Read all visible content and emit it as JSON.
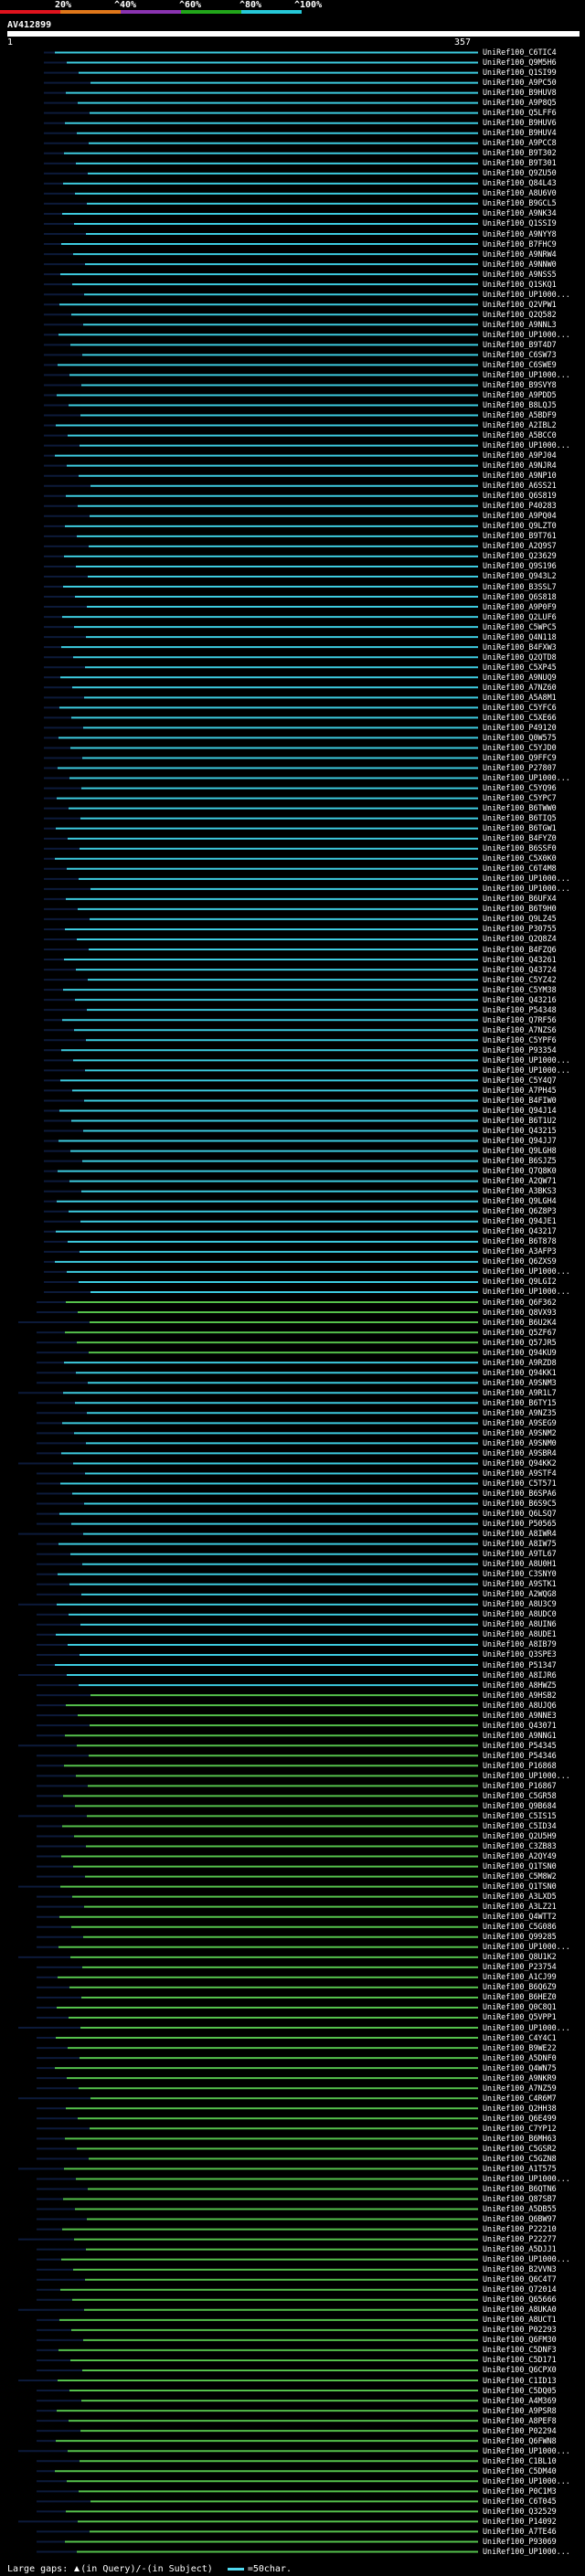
{
  "scale": {
    "labels": [
      "20%",
      "^40%",
      "^60%",
      "^80%",
      "^100%"
    ],
    "colors": [
      "#e0131d",
      "#e0771a",
      "#8a33b0",
      "#22a61a",
      "#26c8d8"
    ]
  },
  "query": {
    "name": "AV412899",
    "start": "1",
    "end": "357"
  },
  "colors": {
    "cyan": "#3dcbe0",
    "green": "#55c14c",
    "dark": "#0c1a3a"
  },
  "hits": [
    "UniRef100_C6TIC4",
    "UniRef100_Q9M5H6",
    "UniRef100_Q1SI99",
    "UniRef100_A9PC50",
    "UniRef100_B9HUV8",
    "UniRef100_A9P8Q5",
    "UniRef100_Q5LFF6",
    "UniRef100_B9HUV6",
    "UniRef100_B9HUV4",
    "UniRef100_A9PCC8",
    "UniRef100_B9T302",
    "UniRef100_B9T301",
    "UniRef100_Q9ZU50",
    "UniRef100_Q84L43",
    "UniRef100_A8U6V0",
    "UniRef100_B9GCL5",
    "UniRef100_A9NK34",
    "UniRef100_Q1SSI9",
    "UniRef100_A9NYY8",
    "UniRef100_B7FHC9",
    "UniRef100_A9NRW4",
    "UniRef100_A9NNW0",
    "UniRef100_A9NSS5",
    "UniRef100_Q1SKQ1",
    "UniRef100_UP1000...",
    "UniRef100_Q2VPW1",
    "UniRef100_Q2Q582",
    "UniRef100_A9NNL3",
    "UniRef100_UP1000...",
    "UniRef100_B9T4D7",
    "UniRef100_C6SW73",
    "UniRef100_C6SWE9",
    "UniRef100_UP1000...",
    "UniRef100_B9SVY8",
    "UniRef100_A9PDD5",
    "UniRef100_B8LQJ5",
    "UniRef100_A5BDF9",
    "UniRef100_A2IBL2",
    "UniRef100_A5BCC0",
    "UniRef100_UP1000...",
    "UniRef100_A9PJ04",
    "UniRef100_A9NJR4",
    "UniRef100_A9NP10",
    "UniRef100_A6SS21",
    "UniRef100_Q6S819",
    "UniRef100_P40283",
    "UniRef100_A9PQ04",
    "UniRef100_Q9LZT0",
    "UniRef100_B9T761",
    "UniRef100_A2Q9S7",
    "UniRef100_Q23629",
    "UniRef100_Q9S196",
    "UniRef100_Q943L2",
    "UniRef100_B3SSL7",
    "UniRef100_Q6S818",
    "UniRef100_A9P0F9",
    "UniRef100_Q2LUF6",
    "UniRef100_C5WPC5",
    "UniRef100_Q4N118",
    "UniRef100_B4FXW3",
    "UniRef100_Q2QTD8",
    "UniRef100_C5XP45",
    "UniRef100_A9NUQ9",
    "UniRef100_A7NZ60",
    "UniRef100_A5A8M1",
    "UniRef100_C5YFC6",
    "UniRef100_C5XE66",
    "UniRef100_P49120",
    "UniRef100_Q0W575",
    "UniRef100_C5YJD0",
    "UniRef100_Q9FFC9",
    "UniRef100_P27807",
    "UniRef100_UP1000...",
    "UniRef100_C5YQ96",
    "UniRef100_C5YPC7",
    "UniRef100_B6TWW0",
    "UniRef100_B6TIQ5",
    "UniRef100_B6TGW1",
    "UniRef100_B4FYZ0",
    "UniRef100_B6SSF0",
    "UniRef100_C5X0K0",
    "UniRef100_C6T4M8",
    "UniRef100_UP1000...",
    "UniRef100_UP1000...",
    "UniRef100_B6UFX4",
    "UniRef100_B6T9H0",
    "UniRef100_Q9LZ45",
    "UniRef100_P30755",
    "UniRef100_Q2Q8Z4",
    "UniRef100_B4FZQ6",
    "UniRef100_Q43261",
    "UniRef100_Q43724",
    "UniRef100_C5YZ42",
    "UniRef100_C5YM38",
    "UniRef100_Q43216",
    "UniRef100_P54348",
    "UniRef100_Q7RF56",
    "UniRef100_A7NZS6",
    "UniRef100_C5YPF6",
    "UniRef100_P93354",
    "UniRef100_UP1000...",
    "UniRef100_UP1000...",
    "UniRef100_C5Y4Q7",
    "UniRef100_A7PH45",
    "UniRef100_B4FIW0",
    "UniRef100_Q94J14",
    "UniRef100_B6T1U2",
    "UniRef100_Q43215",
    "UniRef100_Q94JJ7",
    "UniRef100_Q9LGH8",
    "UniRef100_B6SJZ5",
    "UniRef100_Q7Q8K0",
    "UniRef100_A2QW71",
    "UniRef100_A3BKS3",
    "UniRef100_Q9LGH4",
    "UniRef100_Q6Z8P3",
    "UniRef100_Q94JE1",
    "UniRef100_Q43217",
    "UniRef100_B6T878",
    "UniRef100_A3AFP3",
    "UniRef100_Q6ZXS9",
    "UniRef100_UP1000...",
    "UniRef100_Q9LGI2",
    "UniRef100_UP1000...",
    "UniRef100_Q6F362",
    "UniRef100_Q8VX93",
    "UniRef100_B6U2K4",
    "UniRef100_Q5ZF67",
    "UniRef100_Q57JR5",
    "UniRef100_Q94KU9",
    "UniRef100_A9RZD8",
    "UniRef100_Q94KK1",
    "UniRef100_A9SNM3",
    "UniRef100_A9R1L7",
    "UniRef100_B6TY15",
    "UniRef100_A9NZ35",
    "UniRef100_A9SEG9",
    "UniRef100_A9SNM2",
    "UniRef100_A9SNM0",
    "UniRef100_A9SBR4",
    "UniRef100_Q94KK2",
    "UniRef100_A9STF4",
    "UniRef100_C5T571",
    "UniRef100_B6SPA6",
    "UniRef100_B6S9C5",
    "UniRef100_Q6LSQ7",
    "UniRef100_P50565",
    "UniRef100_A8IWR4",
    "UniRef100_A8IW75",
    "UniRef100_A9TL67",
    "UniRef100_A8U0H1",
    "UniRef100_C3SNY0",
    "UniRef100_A9STK1",
    "UniRef100_A2WQG8",
    "UniRef100_A8U3C9",
    "UniRef100_A8UDC0",
    "UniRef100_A8UIN6",
    "UniRef100_A8UDE1",
    "UniRef100_A8IB79",
    "UniRef100_Q3SPE3",
    "UniRef100_P51347",
    "UniRef100_A8IJR6",
    "UniRef100_A8HWZ5",
    "UniRef100_A9HSB2",
    "UniRef100_A8UJQ6",
    "UniRef100_A9NNE3",
    "UniRef100_Q43071",
    "UniRef100_A9NNG1",
    "UniRef100_P54345",
    "UniRef100_P54346",
    "UniRef100_P16868",
    "UniRef100_UP1000...",
    "UniRef100_P16867",
    "UniRef100_C5GR58",
    "UniRef100_Q9B684",
    "UniRef100_C5IS15",
    "UniRef100_C5ID34",
    "UniRef100_Q2U5H9",
    "UniRef100_C3ZB83",
    "UniRef100_A2QY49",
    "UniRef100_Q1TSN0",
    "UniRef100_C5M8W2",
    "UniRef100_Q1TSN0",
    "UniRef100_A3LXD5",
    "UniRef100_A3LZ21",
    "UniRef100_Q4WTT2",
    "UniRef100_C5G086",
    "UniRef100_Q99285",
    "UniRef100_UP1000...",
    "UniRef100_Q8U1K2",
    "UniRef100_P23754",
    "UniRef100_A1CJ99",
    "UniRef100_B6Q6Z9",
    "UniRef100_B6HEZ0",
    "UniRef100_Q0C8Q1",
    "UniRef100_Q5VPP1",
    "UniRef100_UP1000...",
    "UniRef100_C4Y4C1",
    "UniRef100_B9WE22",
    "UniRef100_A5DNF0",
    "UniRef100_Q4WN75",
    "UniRef100_A9NKR9",
    "UniRef100_A7NZ59",
    "UniRef100_C4R6M7",
    "UniRef100_Q2HH38",
    "UniRef100_Q6E499",
    "UniRef100_C7YP12",
    "UniRef100_B6MH63",
    "UniRef100_C5GSR2",
    "UniRef100_C5GZN8",
    "UniRef100_A1T575",
    "UniRef100_UP1000...",
    "UniRef100_B6QTN6",
    "UniRef100_Q87SB7",
    "UniRef100_A5DB55",
    "UniRef100_Q6BW97",
    "UniRef100_P22210",
    "UniRef100_P22277",
    "UniRef100_A5DJJ1",
    "UniRef100_UP1000...",
    "UniRef100_B2VVN3",
    "UniRef100_Q6C4T7",
    "UniRef100_Q72014",
    "UniRef100_Q65666",
    "UniRef100_A8UKA0",
    "UniRef100_A8UCT1",
    "UniRef100_P02293",
    "UniRef100_Q6FM30",
    "UniRef100_C5DNF3",
    "UniRef100_C5D171",
    "UniRef100_Q6CPX0",
    "UniRef100_C1ID13",
    "UniRef100_C5DQ05",
    "UniRef100_A4M369",
    "UniRef100_A9PSR8",
    "UniRef100_A8PEF8",
    "UniRef100_P02294",
    "UniRef100_Q6FWN8",
    "UniRef100_UP1000...",
    "UniRef100_C1BL10",
    "UniRef100_C5DM40",
    "UniRef100_UP1000...",
    "UniRef100_P0C1M3",
    "UniRef100_C6T045",
    "UniRef100_Q32529",
    "UniRef100_P14092",
    "UniRef100_A7TE46",
    "UniRef100_P93069",
    "UniRef100_UP1000..."
  ],
  "greenFrom": 124,
  "cyanInGreen": [
    130,
    131,
    132,
    133,
    134,
    135,
    136,
    137,
    138,
    139,
    140,
    141,
    142,
    143,
    144,
    145,
    146,
    147,
    148,
    149,
    150,
    151,
    152,
    153,
    154,
    155,
    156,
    157,
    158,
    159,
    160,
    161,
    162
  ],
  "legend": {
    "gaps_label": "Large gaps:",
    "in_query": "(in Query)/",
    "in_subject": "(in Subject)",
    "chars_label": "=50char."
  }
}
